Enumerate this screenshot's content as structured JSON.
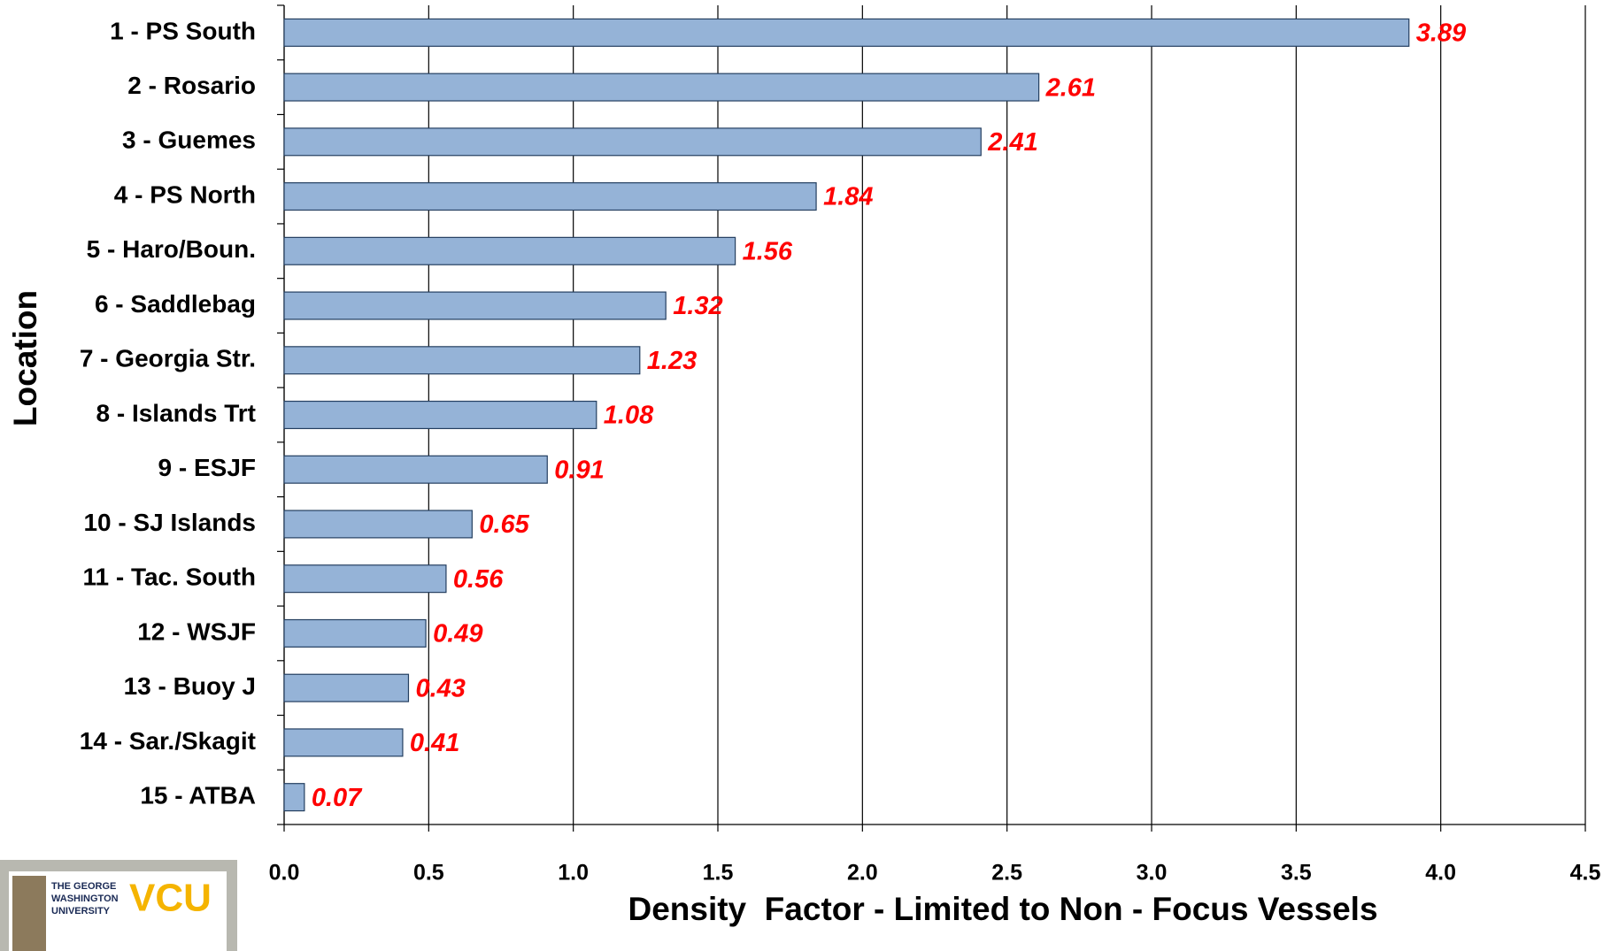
{
  "chart_data": {
    "type": "bar",
    "orientation": "horizontal",
    "x_label": "Density  Factor - Limited to Non - Focus Vessels",
    "y_label": "Location",
    "categories": [
      "1 - PS South",
      "2 - Rosario",
      "3 - Guemes",
      "4 - PS North",
      "5 - Haro/Boun.",
      "6 - Saddlebag",
      "7 - Georgia Str.",
      "8 - Islands Trt",
      "9 - ESJF",
      "10 - SJ Islands",
      "11 - Tac. South",
      "12 - WSJF",
      "13 - Buoy J",
      "14 - Sar./Skagit",
      "15 - ATBA"
    ],
    "values": [
      3.89,
      2.61,
      2.41,
      1.84,
      1.56,
      1.32,
      1.23,
      1.08,
      0.91,
      0.65,
      0.56,
      0.49,
      0.43,
      0.41,
      0.07
    ],
    "color": "#95b3d7",
    "value_label_color": "#ff0000",
    "xlim": [
      0,
      4.5
    ],
    "xticks": [
      {
        "value": 0,
        "label": "0.0"
      },
      {
        "value": 0.5,
        "label": "0.5"
      },
      {
        "value": 1,
        "label": "1.0"
      },
      {
        "value": 1.5,
        "label": "1.5"
      },
      {
        "value": 2,
        "label": "2.0"
      },
      {
        "value": 2.5,
        "label": "2.5"
      },
      {
        "value": 3,
        "label": "3.0"
      },
      {
        "value": 3.5,
        "label": "3.5"
      },
      {
        "value": 4,
        "label": "4.0"
      },
      {
        "value": 4.5,
        "label": "4.5"
      }
    ],
    "grid": true
  },
  "logo": {
    "university": [
      "THE GEORGE",
      "WASHINGTON",
      "UNIVERSITY"
    ],
    "vcu": "VCU"
  }
}
